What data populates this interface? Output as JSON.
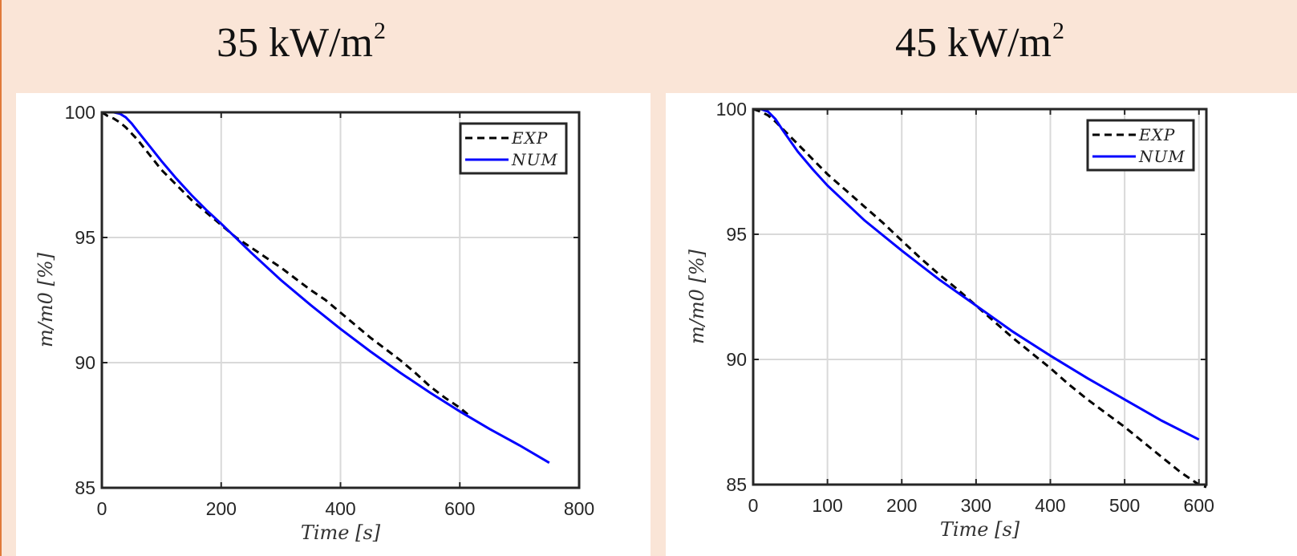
{
  "panels": [
    {
      "title_main": "35 kW/m",
      "title_exp": "2"
    },
    {
      "title_main": "45 kW/m",
      "title_exp": "2"
    }
  ],
  "colors": {
    "background": "#fae5d7",
    "exp": "#000000",
    "num": "#0000ff",
    "grid": "#d9d9d9",
    "axis": "#262626"
  },
  "chart_data": [
    {
      "type": "line",
      "title": "35 kW/m2",
      "xlabel": "Time [s]",
      "ylabel": "m/m0 [%]",
      "xlim": [
        0,
        800
      ],
      "ylim": [
        85,
        100
      ],
      "xticks": [
        0,
        200,
        400,
        600,
        800
      ],
      "yticks": [
        85,
        90,
        95,
        100
      ],
      "grid": true,
      "legend_position": "top-right",
      "series": [
        {
          "name": "EXP",
          "style": "dashed",
          "color": "#000000",
          "x": [
            0,
            10,
            20,
            30,
            40,
            60,
            80,
            100,
            125,
            150,
            175,
            200,
            225,
            250,
            275,
            300,
            325,
            350,
            375,
            400,
            425,
            450,
            475,
            500,
            525,
            550,
            575,
            600,
            615
          ],
          "y": [
            100,
            99.85,
            99.75,
            99.6,
            99.4,
            98.9,
            98.3,
            97.7,
            97.1,
            96.5,
            96.0,
            95.5,
            95.0,
            94.6,
            94.2,
            93.8,
            93.35,
            92.9,
            92.5,
            92.0,
            91.5,
            91.0,
            90.55,
            90.1,
            89.6,
            89.05,
            88.6,
            88.2,
            87.9
          ]
        },
        {
          "name": "NUM",
          "style": "solid",
          "color": "#0000ff",
          "x": [
            0,
            10,
            20,
            30,
            40,
            50,
            60,
            80,
            100,
            125,
            150,
            175,
            200,
            250,
            300,
            350,
            400,
            450,
            500,
            550,
            600,
            650,
            700,
            750
          ],
          "y": [
            100,
            100,
            100,
            99.95,
            99.8,
            99.55,
            99.25,
            98.65,
            98.05,
            97.35,
            96.7,
            96.1,
            95.55,
            94.4,
            93.3,
            92.3,
            91.35,
            90.45,
            89.6,
            88.8,
            88.05,
            87.35,
            86.7,
            86.0
          ]
        }
      ]
    },
    {
      "type": "line",
      "title": "45 kW/m2",
      "xlabel": "Time [s]",
      "ylabel": "m/m0 [%]",
      "xlim": [
        0,
        610
      ],
      "ylim": [
        85,
        100
      ],
      "xticks": [
        0,
        100,
        200,
        300,
        400,
        500,
        600
      ],
      "yticks": [
        85,
        90,
        95,
        100
      ],
      "grid": true,
      "legend_position": "top-right",
      "series": [
        {
          "name": "EXP",
          "style": "dashed",
          "color": "#000000",
          "x": [
            0,
            10,
            20,
            30,
            50,
            75,
            100,
            125,
            150,
            175,
            200,
            225,
            250,
            275,
            300,
            325,
            350,
            375,
            400,
            425,
            450,
            475,
            500,
            525,
            550,
            575,
            600,
            610
          ],
          "y": [
            100,
            99.9,
            99.75,
            99.5,
            98.9,
            98.15,
            97.4,
            96.75,
            96.1,
            95.45,
            94.75,
            94.05,
            93.4,
            92.8,
            92.15,
            91.5,
            90.85,
            90.25,
            89.65,
            89.0,
            88.4,
            87.85,
            87.3,
            86.7,
            86.1,
            85.5,
            85.0,
            84.9
          ]
        },
        {
          "name": "NUM",
          "style": "solid",
          "color": "#0000ff",
          "x": [
            0,
            10,
            20,
            30,
            40,
            60,
            80,
            100,
            150,
            200,
            250,
            300,
            350,
            400,
            450,
            500,
            550,
            600
          ],
          "y": [
            100,
            100,
            99.9,
            99.6,
            99.15,
            98.3,
            97.6,
            96.95,
            95.55,
            94.35,
            93.2,
            92.15,
            91.1,
            90.15,
            89.25,
            88.4,
            87.55,
            86.8
          ]
        }
      ]
    }
  ]
}
